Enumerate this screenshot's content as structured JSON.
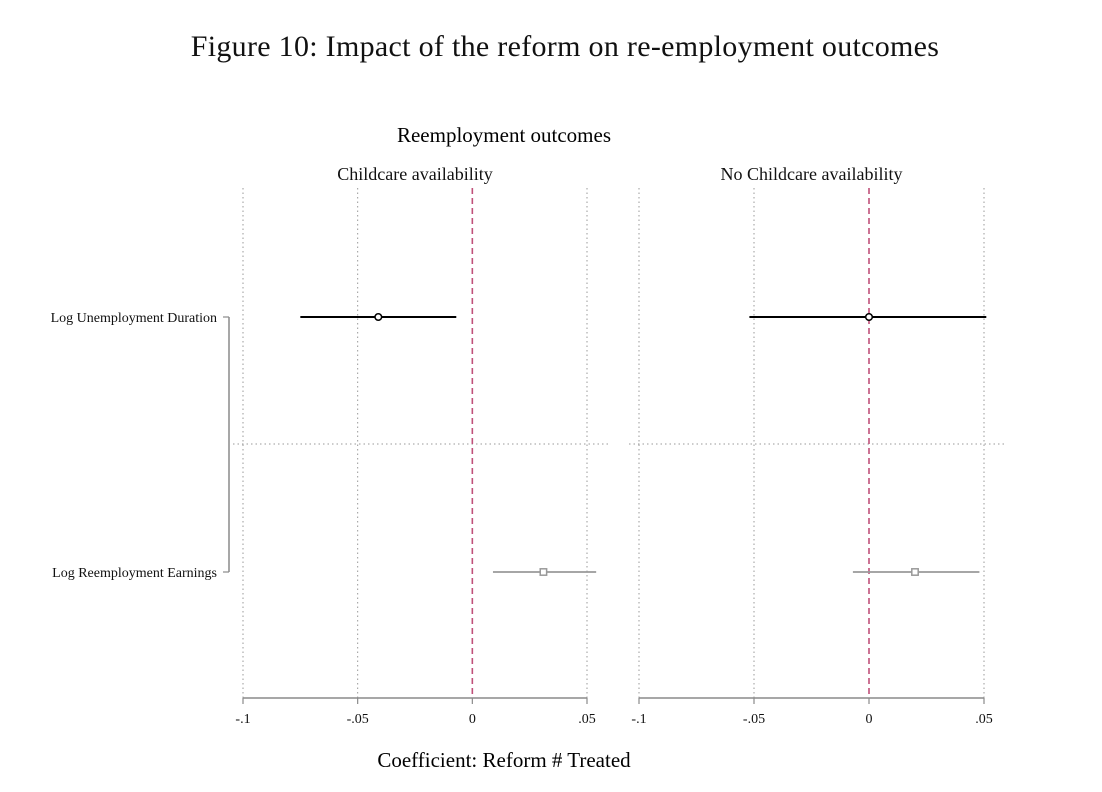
{
  "figure_title": "Figure 10: Impact of the reform on re-employment outcomes",
  "chart_data": {
    "type": "scatter",
    "title": "Reemployment outcomes",
    "xlabel": "Coefficient: Reform # Treated",
    "xlim": [
      -0.1,
      0.05
    ],
    "xticks": [
      -0.1,
      -0.05,
      0,
      0.05
    ],
    "xtick_labels": [
      "-.1",
      "-.05",
      "0",
      ".05"
    ],
    "reference_line_x": 0,
    "reference_line_color": "#c0507a",
    "grid": true,
    "categories": [
      "Log Unemployment Duration",
      "Log Reemployment Earnings"
    ],
    "panels": [
      {
        "name": "Childcare availability",
        "points": [
          {
            "category": "Log Unemployment Duration",
            "estimate": -0.041,
            "ci_low": -0.075,
            "ci_high": -0.007,
            "marker": "circle",
            "color": "#000000"
          },
          {
            "category": "Log Reemployment Earnings",
            "estimate": 0.031,
            "ci_low": 0.009,
            "ci_high": 0.054,
            "marker": "square",
            "color": "#999999"
          }
        ]
      },
      {
        "name": "No Childcare availability",
        "points": [
          {
            "category": "Log Unemployment Duration",
            "estimate": 0.0,
            "ci_low": -0.052,
            "ci_high": 0.051,
            "marker": "circle",
            "color": "#000000"
          },
          {
            "category": "Log Reemployment Earnings",
            "estimate": 0.02,
            "ci_low": -0.007,
            "ci_high": 0.048,
            "marker": "square",
            "color": "#999999"
          }
        ]
      }
    ]
  }
}
